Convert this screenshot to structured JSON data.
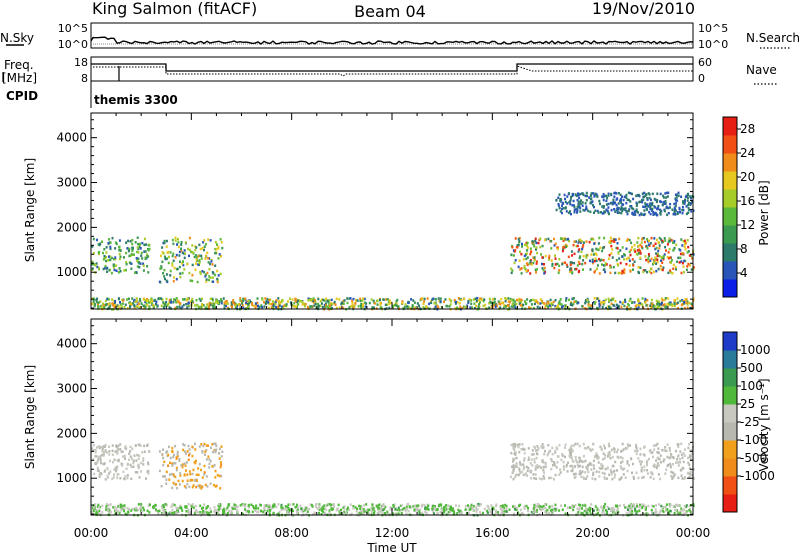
{
  "header": {
    "station": "King Salmon (fitACF)",
    "beam": "Beam 04",
    "date": "19/Nov/2010"
  },
  "top_panel": {
    "nsky_label": "N.Sky",
    "nsky_ticks": [
      "10^5",
      "10^0"
    ],
    "nsearch_label": "N.Search",
    "nsearch_ticks": [
      "10^5",
      "10^0"
    ],
    "freq_label_1": "Freq.",
    "freq_label_2": "[MHz]",
    "freq_ticks": [
      "18",
      "8"
    ],
    "nave_label": "Nave",
    "nave_ticks": [
      "60",
      "0"
    ],
    "cpid_label": "CPID",
    "cpid_value": "themis 3300"
  },
  "x_axis": {
    "label": "Time UT",
    "ticks": [
      "00:00",
      "04:00",
      "08:00",
      "12:00",
      "16:00",
      "20:00",
      "00:00"
    ],
    "hours": [
      0,
      4,
      8,
      12,
      16,
      20,
      24
    ]
  },
  "chart_data": [
    {
      "type": "heatmap",
      "title": "",
      "xlabel": "Time UT",
      "ylabel": "Slant Range [km]",
      "xlim": [
        0,
        24
      ],
      "ylim": [
        180,
        4550
      ],
      "yticks": [
        "4000",
        "3000",
        "2000",
        "1000"
      ],
      "ytick_values": [
        4000,
        3000,
        2000,
        1000
      ],
      "colorbar": {
        "label": "Power [dB]",
        "ticks": [
          "28",
          "24",
          "20",
          "16",
          "12",
          "8",
          "4"
        ],
        "tick_values": [
          28,
          24,
          20,
          16,
          12,
          8,
          4
        ],
        "range": [
          0,
          30
        ],
        "colors": [
          "#0a1ee6",
          "#2a55b8",
          "#2c7a6a",
          "#3a9a50",
          "#5ab83a",
          "#a6cc28",
          "#e6c81e",
          "#f08c1a",
          "#f05014",
          "#e61e14"
        ]
      },
      "scatter_regions": [
        {
          "time_range": [
            0.0,
            2.3
          ],
          "range_km": [
            1000,
            1800
          ],
          "power_db": [
            4,
            18
          ]
        },
        {
          "time_range": [
            2.7,
            5.2
          ],
          "range_km": [
            800,
            1800
          ],
          "power_db": [
            4,
            22
          ]
        },
        {
          "time_range": [
            16.7,
            24.0
          ],
          "range_km": [
            1000,
            1800
          ],
          "power_db": [
            4,
            30
          ]
        },
        {
          "time_range": [
            18.5,
            24.0
          ],
          "range_km": [
            2300,
            2800
          ],
          "power_db": [
            4,
            8
          ]
        },
        {
          "time_range": [
            0.0,
            24.0
          ],
          "range_km": [
            200,
            450
          ],
          "power_db": [
            4,
            24
          ]
        }
      ]
    },
    {
      "type": "heatmap",
      "title": "",
      "xlabel": "Time UT",
      "ylabel": "Slant Range [km]",
      "xlim": [
        0,
        24
      ],
      "ylim": [
        180,
        4550
      ],
      "yticks": [
        "4000",
        "3000",
        "2000",
        "1000"
      ],
      "ytick_values": [
        4000,
        3000,
        2000,
        1000
      ],
      "colorbar": {
        "label": "Velocity [m s⁻¹]",
        "ticks": [
          "1000",
          "500",
          "100",
          "25",
          "-25",
          "-100",
          "-500",
          "-1000"
        ],
        "range": [
          -1200,
          1200
        ],
        "colors": [
          "#e61e14",
          "#f05014",
          "#f08c1a",
          "#f0a01a",
          "#b8b8b0",
          "#c8c8c0",
          "#50b83a",
          "#3a9a50",
          "#2a7a9a",
          "#1e3cc8"
        ]
      },
      "scatter_regions": [
        {
          "time_range": [
            0.0,
            2.3
          ],
          "range_km": [
            1000,
            1800
          ],
          "velocity": [
            -25,
            25
          ]
        },
        {
          "time_range": [
            2.7,
            5.2
          ],
          "range_km": [
            800,
            1800
          ],
          "velocity": [
            -500,
            -25
          ]
        },
        {
          "time_range": [
            16.7,
            24.0
          ],
          "range_km": [
            1000,
            1800
          ],
          "velocity": [
            -25,
            25
          ]
        },
        {
          "time_range": [
            0.0,
            24.0
          ],
          "range_km": [
            200,
            450
          ],
          "velocity": [
            25,
            500
          ]
        }
      ]
    }
  ]
}
